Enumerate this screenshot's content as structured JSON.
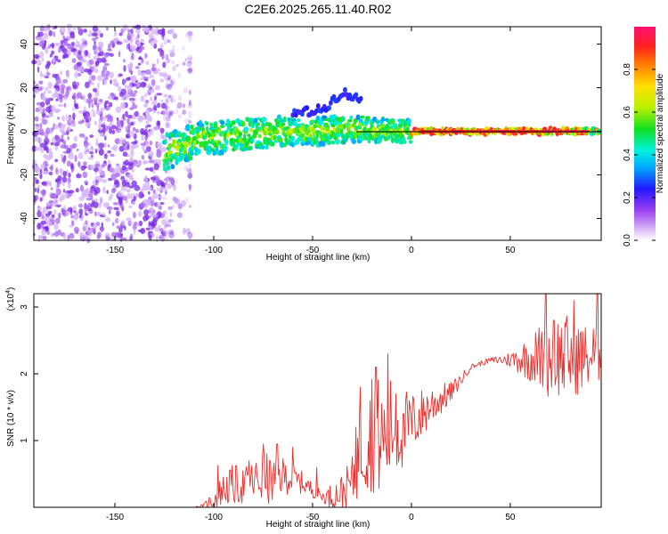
{
  "title": "C2E6.2025.265.11.40.R02",
  "colors": {
    "snr_line": "#e8302e",
    "frame": "#000000",
    "spectrum_hue_low": "#b060f0",
    "spectrum_hue_high": "#ff2060"
  },
  "chart_data": [
    {
      "type": "heatmap",
      "name": "spectrogram",
      "xlabel": "Height of straight line (km)",
      "ylabel": "Frequency (Hz)",
      "xlim": [
        -191,
        96
      ],
      "ylim": [
        -50,
        48
      ],
      "xticks": [
        -150,
        -100,
        -50,
        0,
        50
      ],
      "xtick_labels": [
        "-150",
        "-100",
        "-50",
        "0",
        "50"
      ],
      "yticks": [
        -40,
        -20,
        0,
        20,
        40
      ],
      "ytick_labels": [
        "-40",
        "-20",
        "0",
        "20",
        "40"
      ],
      "colorbar": {
        "label": "Normalized spectral amplitude",
        "range": [
          0,
          1
        ],
        "ticks": [
          0.0,
          0.2,
          0.4,
          0.6,
          0.8
        ],
        "tick_labels": [
          "0.0",
          "0.2",
          "0.4",
          "0.6",
          "0.8"
        ]
      },
      "features": [
        {
          "kind": "noise",
          "x_range": [
            -191,
            -120
          ],
          "y_range": [
            -50,
            48
          ],
          "amplitude": 0.15
        },
        {
          "kind": "band",
          "points": [
            [
              -125,
              -10
            ],
            [
              -110,
              -4
            ],
            [
              -90,
              -2
            ],
            [
              -70,
              0
            ],
            [
              -50,
              0
            ],
            [
              -30,
              1
            ],
            [
              0,
              0
            ],
            [
              50,
              0
            ],
            [
              96,
              0
            ]
          ],
          "amplitude_start": 0.3,
          "amplitude_end": 0.95
        },
        {
          "kind": "arm",
          "points": [
            [
              -60,
              8
            ],
            [
              -45,
              10
            ],
            [
              -35,
              18
            ],
            [
              -25,
              14
            ]
          ],
          "amplitude": 0.2
        }
      ]
    },
    {
      "type": "line",
      "name": "snr",
      "xlabel": "Height of straight line (km)",
      "ylabel": "SNR (10 * v/v)",
      "multiplier_label": "(x10",
      "multiplier_exp": "4",
      "multiplier_close": ")",
      "xlim": [
        -191,
        96
      ],
      "ylim": [
        0,
        3.2
      ],
      "xticks": [
        -150,
        -100,
        -50,
        0,
        50
      ],
      "xtick_labels": [
        "-150",
        "-100",
        "-50",
        "0",
        "50"
      ],
      "yticks": [
        1,
        2,
        3
      ],
      "ytick_labels": [
        "1",
        "2",
        "3"
      ],
      "envelope": {
        "x": [
          -191,
          -110,
          -105,
          -100,
          -95,
          -90,
          -85,
          -80,
          -75,
          -70,
          -65,
          -60,
          -55,
          -50,
          -45,
          -40,
          -35,
          -30,
          -25,
          -20,
          -15,
          -10,
          -5,
          0,
          10,
          20,
          30,
          40,
          50,
          60,
          70,
          80,
          90,
          96
        ],
        "base": [
          0.0,
          0.0,
          0.02,
          0.1,
          0.25,
          0.3,
          0.3,
          0.35,
          0.4,
          0.35,
          0.45,
          0.4,
          0.35,
          0.25,
          0.15,
          0.15,
          0.2,
          0.35,
          0.9,
          1.1,
          0.9,
          1.1,
          1.1,
          1.2,
          1.5,
          1.7,
          2.1,
          2.2,
          2.2,
          2.2,
          2.2,
          2.2,
          2.2,
          2.3
        ],
        "spread": [
          0.0,
          0.0,
          0.04,
          0.2,
          0.3,
          0.4,
          0.35,
          0.4,
          0.5,
          0.45,
          0.35,
          0.3,
          0.2,
          0.15,
          0.1,
          0.25,
          0.35,
          0.45,
          1.0,
          1.2,
          1.1,
          1.0,
          0.8,
          0.6,
          0.4,
          0.2,
          0.05,
          0.05,
          0.15,
          0.45,
          0.8,
          0.8,
          0.6,
          0.6
        ]
      },
      "peaks": [
        [
          -98,
          0.63
        ],
        [
          -82,
          0.7
        ],
        [
          -75,
          0.95
        ],
        [
          -68,
          0.95
        ],
        [
          -60,
          0.9
        ],
        [
          -48,
          0.6
        ],
        [
          -28,
          1.2
        ],
        [
          -26,
          1.8
        ],
        [
          -18,
          2.1
        ],
        [
          -12,
          2.3
        ],
        [
          -8,
          1.7
        ],
        [
          -4,
          1.4
        ],
        [
          68,
          3.2
        ],
        [
          72,
          2.8
        ],
        [
          82,
          3.1
        ],
        [
          94,
          3.2
        ]
      ]
    }
  ]
}
